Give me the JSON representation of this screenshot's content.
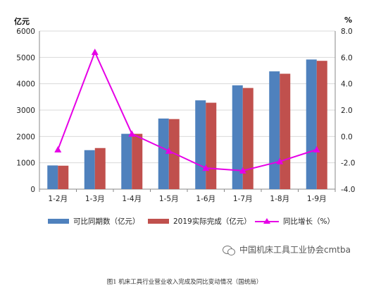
{
  "chart_data": {
    "type": "bar",
    "categories": [
      "1-2月",
      "1-3月",
      "1-4月",
      "1-5月",
      "1-6月",
      "1-7月",
      "1-8月",
      "1-9月"
    ],
    "series": [
      {
        "name": "可比同期数（亿元）",
        "type": "bar",
        "axis": "left",
        "color": "#4f81bd",
        "values": [
          900,
          1480,
          2100,
          2680,
          3370,
          3940,
          4470,
          4920
        ]
      },
      {
        "name": "2019实际完成（亿元）",
        "type": "bar",
        "axis": "left",
        "color": "#c0504d",
        "values": [
          890,
          1560,
          2100,
          2660,
          3280,
          3840,
          4380,
          4870
        ]
      },
      {
        "name": "同比增长（%）",
        "type": "line",
        "axis": "right",
        "color": "#e600e6",
        "values": [
          -1.0,
          6.4,
          0.2,
          -1.1,
          -2.4,
          -2.6,
          -1.9,
          -1.0
        ]
      }
    ],
    "left_axis": {
      "unit": "亿元",
      "min": 0,
      "max": 6000,
      "ticks": [
        "0",
        "1000",
        "2000",
        "3000",
        "4000",
        "5000",
        "6000"
      ]
    },
    "right_axis": {
      "unit": "%",
      "min": -4.0,
      "max": 8.0,
      "ticks": [
        "-4.0",
        "-2.0",
        "0.0",
        "2.0",
        "4.0",
        "6.0",
        "8.0"
      ]
    },
    "grid": true,
    "legend_position": "bottom"
  },
  "watermark": "中国机床工具工业协会cmtba",
  "caption": "图1  机床工具行业营业收入完成及同比变动情况（国统局）"
}
